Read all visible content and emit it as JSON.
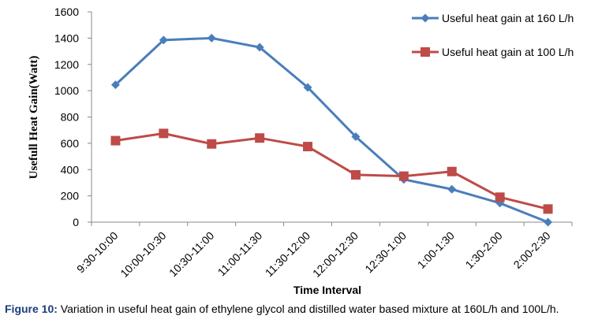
{
  "chart_data": {
    "type": "line",
    "categories": [
      "9:30-10:00",
      "10:00-10:30",
      "10:30-11:00",
      "11:00-11:30",
      "11:30-12:00",
      "12:00-12:30",
      "12:30-1:00",
      "1:00-1:30",
      "1:30-2:00",
      "2:00-2:30"
    ],
    "series": [
      {
        "name": "Useful heat gain at 160 L/h",
        "color": "#4a7ebb",
        "marker": "diamond",
        "values": [
          1045,
          1385,
          1400,
          1330,
          1025,
          650,
          325,
          250,
          145,
          0
        ]
      },
      {
        "name": "Useful heat gain at 100 L/h",
        "color": "#be4b48",
        "marker": "square",
        "values": [
          620,
          675,
          595,
          640,
          575,
          360,
          350,
          385,
          190,
          100
        ]
      }
    ],
    "xlabel": "Time Interval",
    "ylabel": "Usefull Heat Gain(Watt)",
    "ylim": [
      0,
      1600
    ],
    "yticks": [
      0,
      200,
      400,
      600,
      800,
      1000,
      1200,
      1400,
      1600
    ],
    "grid": false,
    "legend": "top-right"
  },
  "caption": {
    "label": "Figure 10:",
    "text": " Variation in useful heat gain of ethylene glycol and distilled water based mixture at 160L/h and 100L/h."
  }
}
